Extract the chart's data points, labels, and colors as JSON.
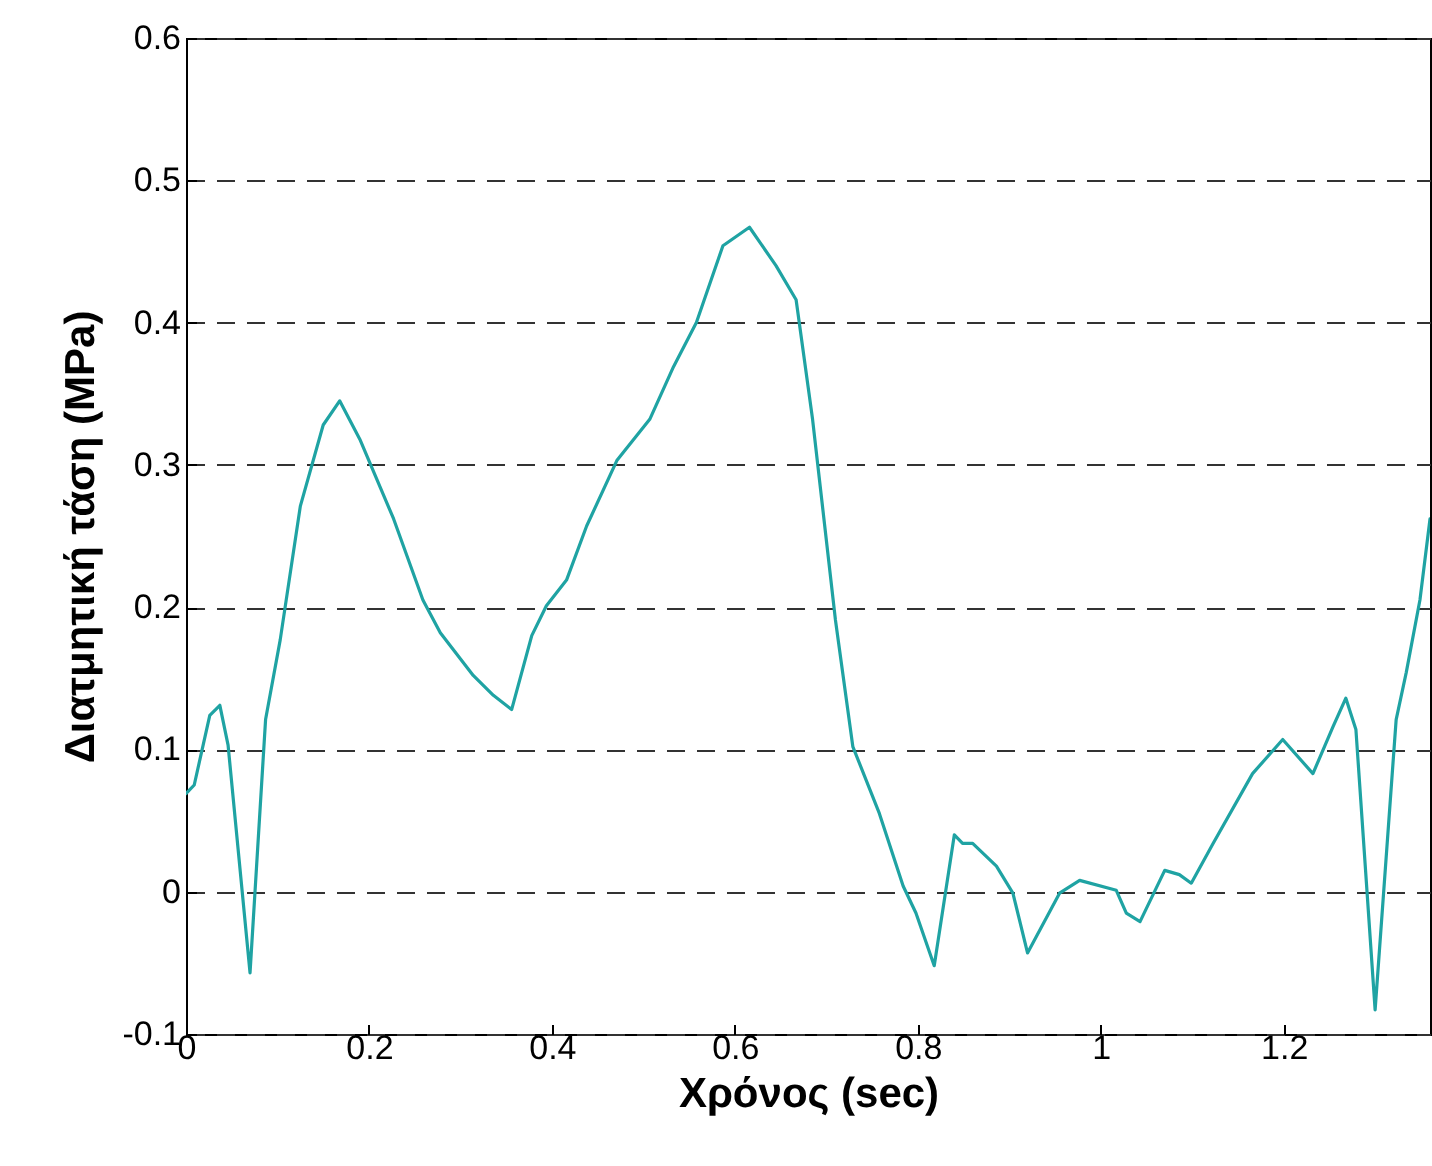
{
  "chart_data": {
    "type": "line",
    "xlabel": "Χρόνος (sec)",
    "ylabel": "Διατμητική τάση (MPa)",
    "x": [
      0,
      0.009,
      0.026,
      0.037,
      0.046,
      0.07,
      0.087,
      0.103,
      0.125,
      0.15,
      0.168,
      0.19,
      0.227,
      0.259,
      0.278,
      0.314,
      0.336,
      0.356,
      0.378,
      0.394,
      0.416,
      0.438,
      0.471,
      0.507,
      0.533,
      0.558,
      0.587,
      0.616,
      0.645,
      0.667,
      0.685,
      0.71,
      0.729,
      0.758,
      0.784,
      0.798,
      0.818,
      0.84,
      0.849,
      0.86,
      0.886,
      0.904,
      0.92,
      0.955,
      0.977,
      1.017,
      1.028,
      1.043,
      1.07,
      1.086,
      1.099,
      1.123,
      1.166,
      1.199,
      1.232,
      1.254,
      1.268,
      1.279,
      1.3,
      1.323,
      1.334,
      1.349,
      1.36
    ],
    "series": [
      {
        "color": "#1fa3a3",
        "values": [
          0.069,
          0.075,
          0.124,
          0.131,
          0.103,
          -0.057,
          0.121,
          0.177,
          0.271,
          0.328,
          0.345,
          0.318,
          0.262,
          0.205,
          0.182,
          0.152,
          0.138,
          0.128,
          0.18,
          0.201,
          0.219,
          0.257,
          0.303,
          0.332,
          0.369,
          0.4,
          0.454,
          0.467,
          0.44,
          0.416,
          0.332,
          0.191,
          0.102,
          0.055,
          0.004,
          -0.015,
          -0.052,
          0.04,
          0.034,
          0.034,
          0.018,
          -0.001,
          -0.043,
          -0.001,
          0.008,
          0.001,
          -0.015,
          -0.021,
          0.015,
          0.012,
          0.006,
          0.034,
          0.083,
          0.107,
          0.083,
          0.116,
          0.136,
          0.114,
          -0.083,
          0.121,
          0.154,
          0.205,
          0.262
        ]
      }
    ],
    "xlim": [
      0,
      1.36
    ],
    "xticks": [
      0,
      0.2,
      0.4,
      0.6,
      0.8,
      1,
      1.2
    ],
    "ylim": [
      -0.1,
      0.6
    ],
    "yticks": [
      -0.1,
      0,
      0.1,
      0.2,
      0.3,
      0.4,
      0.5,
      0.6
    ],
    "grid": "y",
    "line_style": "solid"
  }
}
